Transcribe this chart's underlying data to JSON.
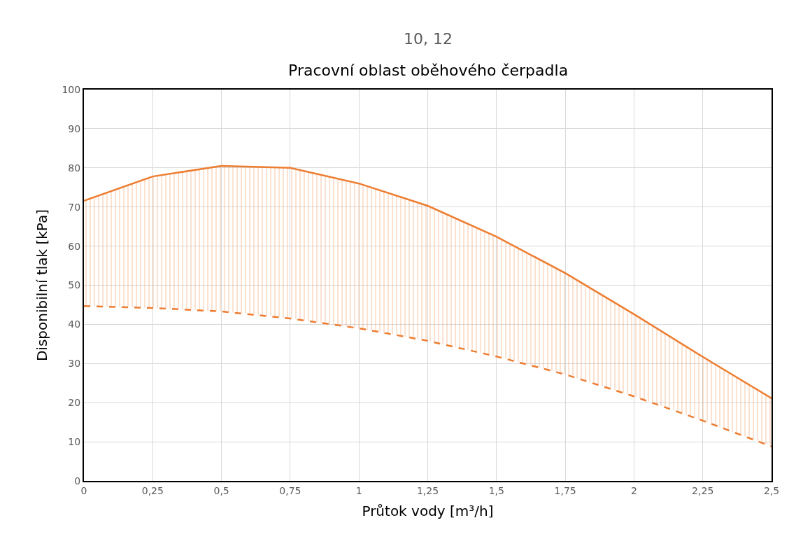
{
  "chart_data": {
    "type": "line",
    "title": "10, 12",
    "subtitle": "Pracovní oblast oběhového čerpadla",
    "xlabel": "Průtok vody [m³/h]",
    "ylabel": "Disponibilní tlak [kPa]",
    "x": [
      0,
      0.25,
      0.5,
      0.75,
      1,
      1.25,
      1.5,
      1.75,
      2,
      2.25,
      2.5
    ],
    "series": [
      {
        "line_style": "dashed",
        "color": "#ed7d31",
        "values": [
          44.7,
          44.2,
          43.3,
          41.5,
          39,
          35.8,
          31.8,
          27.2,
          21.6,
          15.4,
          8.8
        ]
      },
      {
        "type": "area",
        "line_style": "solid",
        "color": "#ed7d31",
        "values": [
          71.6,
          77.8,
          80.5,
          80,
          76,
          70.3,
          62.4,
          53.1,
          42.6,
          31.7,
          21.1
        ]
      }
    ],
    "xlim": [
      0,
      2.5
    ],
    "ylim": [
      0,
      100
    ],
    "xticks": [
      0,
      {
        "value": 0.25,
        "label": "0,25"
      },
      {
        "value": 0.5,
        "label": "0,5"
      },
      {
        "value": 0.75,
        "label": "0,75"
      },
      1,
      {
        "value": 1.25,
        "label": "1,25"
      },
      {
        "value": 1.5,
        "label": "1,5"
      },
      {
        "value": 1.75,
        "label": "1,75"
      },
      2,
      {
        "value": 2.25,
        "label": "2,25"
      },
      {
        "value": 2.5,
        "label": "2,5"
      }
    ],
    "yticks": [
      0,
      10,
      20,
      30,
      40,
      50,
      60,
      70,
      80,
      90,
      100
    ],
    "grid": true
  }
}
